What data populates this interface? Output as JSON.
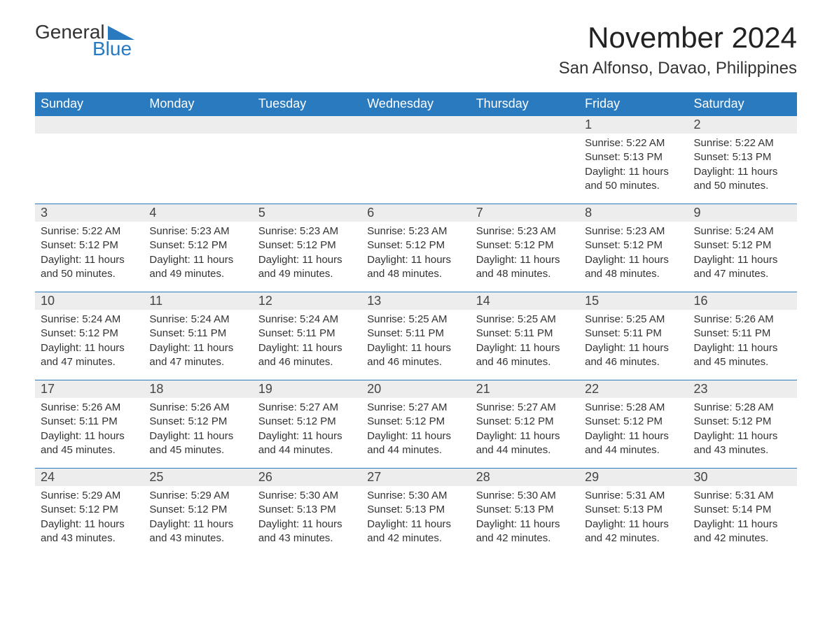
{
  "logo": {
    "text_general": "General",
    "text_blue": "Blue",
    "accent_color": "#2a7ac0"
  },
  "title": "November 2024",
  "location": "San Alfonso, Davao, Philippines",
  "colors": {
    "header_bg": "#2a7ac0",
    "header_text": "#ffffff",
    "daynum_bg": "#ededed",
    "text": "#333333",
    "row_divider": "#2a7ac0",
    "page_bg": "#ffffff"
  },
  "typography": {
    "title_fontsize": 42,
    "location_fontsize": 24,
    "header_fontsize": 18,
    "daynum_fontsize": 18,
    "body_fontsize": 15
  },
  "weekdays": [
    "Sunday",
    "Monday",
    "Tuesday",
    "Wednesday",
    "Thursday",
    "Friday",
    "Saturday"
  ],
  "weeks": [
    [
      null,
      null,
      null,
      null,
      null,
      {
        "n": "1",
        "sunrise": "5:22 AM",
        "sunset": "5:13 PM",
        "daylight": "11 hours and 50 minutes."
      },
      {
        "n": "2",
        "sunrise": "5:22 AM",
        "sunset": "5:13 PM",
        "daylight": "11 hours and 50 minutes."
      }
    ],
    [
      {
        "n": "3",
        "sunrise": "5:22 AM",
        "sunset": "5:12 PM",
        "daylight": "11 hours and 50 minutes."
      },
      {
        "n": "4",
        "sunrise": "5:23 AM",
        "sunset": "5:12 PM",
        "daylight": "11 hours and 49 minutes."
      },
      {
        "n": "5",
        "sunrise": "5:23 AM",
        "sunset": "5:12 PM",
        "daylight": "11 hours and 49 minutes."
      },
      {
        "n": "6",
        "sunrise": "5:23 AM",
        "sunset": "5:12 PM",
        "daylight": "11 hours and 48 minutes."
      },
      {
        "n": "7",
        "sunrise": "5:23 AM",
        "sunset": "5:12 PM",
        "daylight": "11 hours and 48 minutes."
      },
      {
        "n": "8",
        "sunrise": "5:23 AM",
        "sunset": "5:12 PM",
        "daylight": "11 hours and 48 minutes."
      },
      {
        "n": "9",
        "sunrise": "5:24 AM",
        "sunset": "5:12 PM",
        "daylight": "11 hours and 47 minutes."
      }
    ],
    [
      {
        "n": "10",
        "sunrise": "5:24 AM",
        "sunset": "5:12 PM",
        "daylight": "11 hours and 47 minutes."
      },
      {
        "n": "11",
        "sunrise": "5:24 AM",
        "sunset": "5:11 PM",
        "daylight": "11 hours and 47 minutes."
      },
      {
        "n": "12",
        "sunrise": "5:24 AM",
        "sunset": "5:11 PM",
        "daylight": "11 hours and 46 minutes."
      },
      {
        "n": "13",
        "sunrise": "5:25 AM",
        "sunset": "5:11 PM",
        "daylight": "11 hours and 46 minutes."
      },
      {
        "n": "14",
        "sunrise": "5:25 AM",
        "sunset": "5:11 PM",
        "daylight": "11 hours and 46 minutes."
      },
      {
        "n": "15",
        "sunrise": "5:25 AM",
        "sunset": "5:11 PM",
        "daylight": "11 hours and 46 minutes."
      },
      {
        "n": "16",
        "sunrise": "5:26 AM",
        "sunset": "5:11 PM",
        "daylight": "11 hours and 45 minutes."
      }
    ],
    [
      {
        "n": "17",
        "sunrise": "5:26 AM",
        "sunset": "5:11 PM",
        "daylight": "11 hours and 45 minutes."
      },
      {
        "n": "18",
        "sunrise": "5:26 AM",
        "sunset": "5:12 PM",
        "daylight": "11 hours and 45 minutes."
      },
      {
        "n": "19",
        "sunrise": "5:27 AM",
        "sunset": "5:12 PM",
        "daylight": "11 hours and 44 minutes."
      },
      {
        "n": "20",
        "sunrise": "5:27 AM",
        "sunset": "5:12 PM",
        "daylight": "11 hours and 44 minutes."
      },
      {
        "n": "21",
        "sunrise": "5:27 AM",
        "sunset": "5:12 PM",
        "daylight": "11 hours and 44 minutes."
      },
      {
        "n": "22",
        "sunrise": "5:28 AM",
        "sunset": "5:12 PM",
        "daylight": "11 hours and 44 minutes."
      },
      {
        "n": "23",
        "sunrise": "5:28 AM",
        "sunset": "5:12 PM",
        "daylight": "11 hours and 43 minutes."
      }
    ],
    [
      {
        "n": "24",
        "sunrise": "5:29 AM",
        "sunset": "5:12 PM",
        "daylight": "11 hours and 43 minutes."
      },
      {
        "n": "25",
        "sunrise": "5:29 AM",
        "sunset": "5:12 PM",
        "daylight": "11 hours and 43 minutes."
      },
      {
        "n": "26",
        "sunrise": "5:30 AM",
        "sunset": "5:13 PM",
        "daylight": "11 hours and 43 minutes."
      },
      {
        "n": "27",
        "sunrise": "5:30 AM",
        "sunset": "5:13 PM",
        "daylight": "11 hours and 42 minutes."
      },
      {
        "n": "28",
        "sunrise": "5:30 AM",
        "sunset": "5:13 PM",
        "daylight": "11 hours and 42 minutes."
      },
      {
        "n": "29",
        "sunrise": "5:31 AM",
        "sunset": "5:13 PM",
        "daylight": "11 hours and 42 minutes."
      },
      {
        "n": "30",
        "sunrise": "5:31 AM",
        "sunset": "5:14 PM",
        "daylight": "11 hours and 42 minutes."
      }
    ]
  ],
  "labels": {
    "sunrise": "Sunrise:",
    "sunset": "Sunset:",
    "daylight": "Daylight:"
  }
}
